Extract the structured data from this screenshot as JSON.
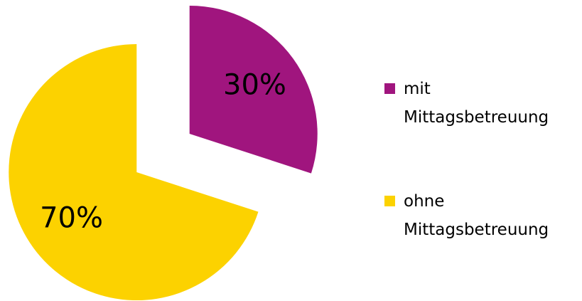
{
  "chart_data": {
    "type": "pie",
    "categories": [
      "mit Mittagsbetreuung",
      "ohne Mittagsbetreuung"
    ],
    "values": [
      30,
      70
    ],
    "value_labels": [
      "30%",
      "70%"
    ],
    "colors": [
      "#a0157e",
      "#fcd200"
    ],
    "legend": "right"
  }
}
